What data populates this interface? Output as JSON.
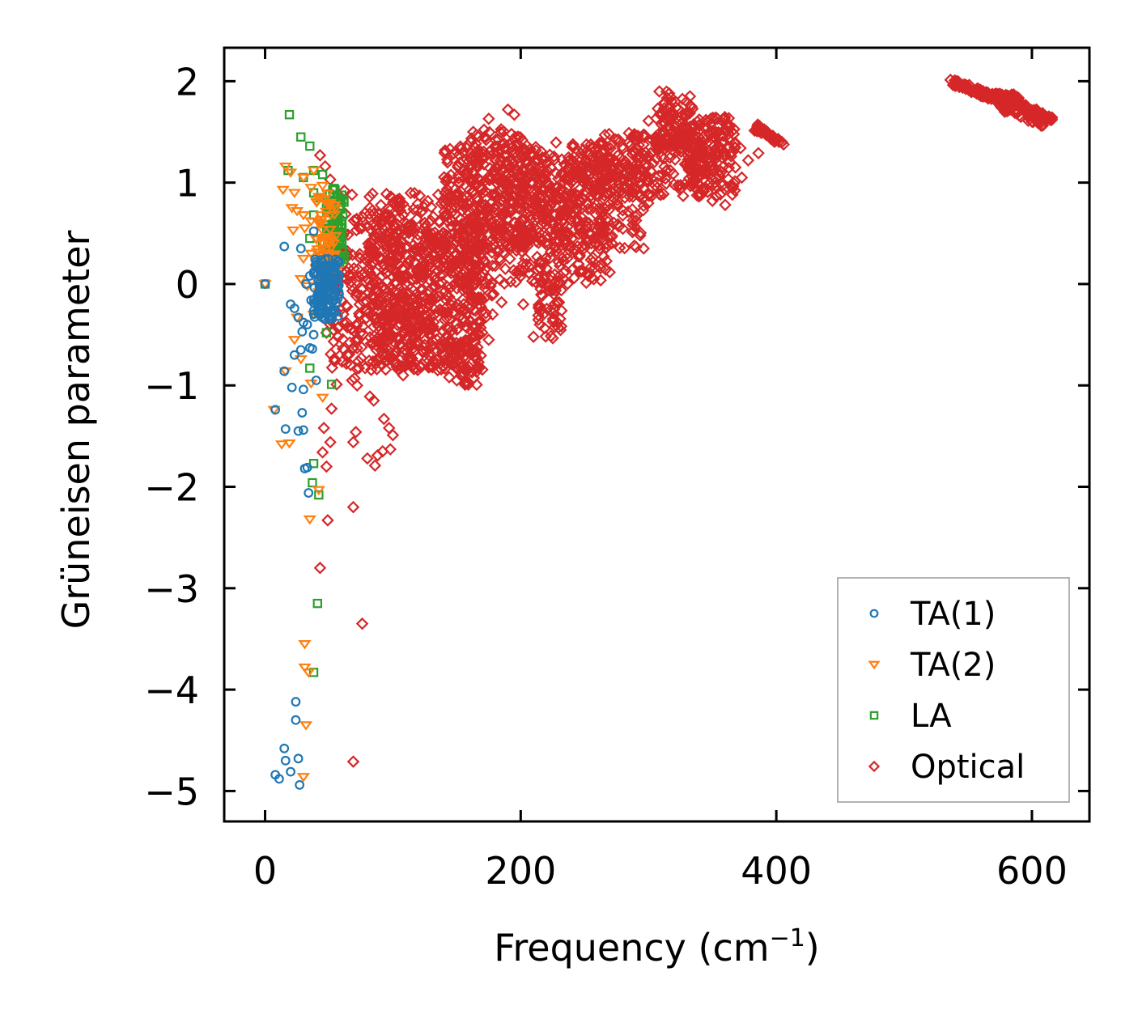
{
  "chart_data": {
    "type": "scatter",
    "title": "",
    "xlabel": "Frequency (cm",
    "xlabel_sup": "−1",
    "xlabel_close": ")",
    "ylabel": "Grüneisen parameter",
    "xlim": [
      -32,
      645
    ],
    "ylim": [
      -5.3,
      2.33
    ],
    "xticks": [
      0,
      200,
      400,
      600
    ],
    "xtick_labels": [
      "0",
      "200",
      "400",
      "600"
    ],
    "yticks": [
      2,
      1,
      0,
      -1,
      -2,
      -3,
      -4,
      -5
    ],
    "ytick_labels": [
      "2",
      "1",
      "0",
      "−1",
      "−2",
      "−3",
      "−4",
      "−5"
    ],
    "grid": false,
    "legend_position": "bottom-right",
    "series": [
      {
        "name": "TA(1)",
        "color": "#1f77b4",
        "marker": "circle",
        "points": [
          [
            0,
            0
          ],
          [
            15,
            0.37
          ],
          [
            28,
            0.35
          ],
          [
            38,
            0.52
          ],
          [
            40,
            0.22
          ],
          [
            35,
            0.08
          ],
          [
            32,
            0.0
          ],
          [
            44,
            -0.03
          ],
          [
            46,
            -0.12
          ],
          [
            20,
            -0.2
          ],
          [
            23,
            -0.24
          ],
          [
            26,
            -0.33
          ],
          [
            30,
            -0.38
          ],
          [
            33,
            -0.4
          ],
          [
            36,
            -0.16
          ],
          [
            38,
            -0.5
          ],
          [
            29,
            -0.47
          ],
          [
            23,
            -0.7
          ],
          [
            28,
            -0.65
          ],
          [
            35,
            -0.63
          ],
          [
            37,
            -0.64
          ],
          [
            15,
            -0.86
          ],
          [
            40,
            -0.95
          ],
          [
            21,
            -1.02
          ],
          [
            30,
            -1.04
          ],
          [
            8,
            -1.24
          ],
          [
            29,
            -1.27
          ],
          [
            16,
            -1.43
          ],
          [
            26,
            -1.45
          ],
          [
            30,
            -1.44
          ],
          [
            31,
            -1.82
          ],
          [
            33,
            -1.81
          ],
          [
            34,
            -2.06
          ],
          [
            24,
            -4.12
          ],
          [
            24,
            -4.3
          ],
          [
            15,
            -4.58
          ],
          [
            26,
            -4.68
          ],
          [
            16,
            -4.7
          ],
          [
            8,
            -4.84
          ],
          [
            11,
            -4.88
          ],
          [
            20,
            -4.81
          ],
          [
            27,
            -4.94
          ]
        ],
        "dense_cluster": {
          "x_range": [
            38,
            58
          ],
          "y_range": [
            -0.35,
            0.25
          ],
          "count": 140
        }
      },
      {
        "name": "TA(2)",
        "color": "#ff7f0e",
        "marker": "triangle-down",
        "points": [
          [
            0,
            0
          ],
          [
            16,
            1.16
          ],
          [
            20,
            1.1
          ],
          [
            30,
            1.05
          ],
          [
            38,
            1.12
          ],
          [
            14,
            0.93
          ],
          [
            23,
            0.9
          ],
          [
            36,
            0.95
          ],
          [
            45,
            0.97
          ],
          [
            21,
            0.75
          ],
          [
            25,
            0.72
          ],
          [
            30,
            0.68
          ],
          [
            36,
            0.62
          ],
          [
            42,
            0.6
          ],
          [
            22,
            0.53
          ],
          [
            31,
            0.55
          ],
          [
            40,
            0.45
          ],
          [
            30,
            0.25
          ],
          [
            36,
            0.3
          ],
          [
            40,
            0.15
          ],
          [
            28,
            0.05
          ],
          [
            33,
            -0.02
          ],
          [
            42,
            -0.08
          ],
          [
            38,
            -0.3
          ],
          [
            25,
            -0.33
          ],
          [
            23,
            -0.55
          ],
          [
            28,
            -0.74
          ],
          [
            16,
            -0.86
          ],
          [
            36,
            -0.98
          ],
          [
            45,
            -1.12
          ],
          [
            7,
            -1.24
          ],
          [
            13,
            -1.58
          ],
          [
            19,
            -1.57
          ],
          [
            42,
            -2.03
          ],
          [
            35,
            -2.32
          ],
          [
            31,
            -3.55
          ],
          [
            31,
            -3.78
          ],
          [
            34,
            -3.83
          ],
          [
            32,
            -4.35
          ],
          [
            30,
            -4.86
          ]
        ],
        "dense_cluster": {
          "x_range": [
            40,
            56
          ],
          "y_range": [
            -0.1,
            0.9
          ],
          "count": 70
        }
      },
      {
        "name": "LA",
        "color": "#2ca02c",
        "marker": "square",
        "points": [
          [
            0,
            0
          ],
          [
            19,
            1.67
          ],
          [
            28,
            1.45
          ],
          [
            35,
            1.36
          ],
          [
            18,
            1.12
          ],
          [
            38,
            1.12
          ],
          [
            45,
            1.08
          ],
          [
            30,
            1.05
          ],
          [
            38,
            0.9
          ],
          [
            43,
            0.85
          ],
          [
            48,
            0.75
          ],
          [
            38,
            0.68
          ],
          [
            35,
            0.45
          ],
          [
            45,
            0.4
          ],
          [
            50,
            0.32
          ],
          [
            43,
            0.15
          ],
          [
            48,
            -0.48
          ],
          [
            35,
            -0.83
          ],
          [
            52,
            -0.99
          ],
          [
            38,
            -1.77
          ],
          [
            37,
            -1.96
          ],
          [
            42,
            -2.08
          ],
          [
            41,
            -3.15
          ],
          [
            38,
            -3.83
          ]
        ],
        "dense_cluster": {
          "x_range": [
            48,
            62
          ],
          "y_range": [
            0.2,
            0.95
          ],
          "count": 90
        }
      },
      {
        "name": "Optical",
        "color": "#d62728",
        "marker": "diamond",
        "points": [
          [
            43,
            1.27
          ],
          [
            47,
            1.16
          ],
          [
            51,
            1.03
          ],
          [
            62,
            0.92
          ],
          [
            68,
            0.88
          ],
          [
            55,
            0.8
          ],
          [
            63,
            0.69
          ],
          [
            48,
            -0.48
          ],
          [
            57,
            -0.52
          ],
          [
            62,
            -0.65
          ],
          [
            67,
            -0.8
          ],
          [
            70,
            -0.93
          ],
          [
            72,
            -1.0
          ],
          [
            68,
            -0.95
          ],
          [
            56,
            -0.99
          ],
          [
            52,
            -1.23
          ],
          [
            46,
            -1.42
          ],
          [
            45,
            -1.66
          ],
          [
            48,
            -1.8
          ],
          [
            51,
            -1.56
          ],
          [
            69,
            -1.56
          ],
          [
            71,
            -1.46
          ],
          [
            82,
            -1.11
          ],
          [
            85,
            -1.15
          ],
          [
            93,
            -1.33
          ],
          [
            97,
            -1.42
          ],
          [
            100,
            -1.49
          ],
          [
            92,
            -1.65
          ],
          [
            88,
            -1.69
          ],
          [
            86,
            -1.79
          ],
          [
            98,
            -1.63
          ],
          [
            80,
            -1.72
          ],
          [
            49,
            -2.33
          ],
          [
            69,
            -2.2
          ],
          [
            43,
            -2.8
          ],
          [
            76,
            -3.35
          ],
          [
            69,
            -4.71
          ],
          [
            175,
            1.63
          ],
          [
            190,
            1.72
          ],
          [
            195,
            1.67
          ],
          [
            212,
            1.15
          ],
          [
            247,
            1.05
          ],
          [
            255,
            0.95
          ],
          [
            268,
            0.65
          ],
          [
            263,
            0.73
          ],
          [
            280,
            0.9
          ],
          [
            290,
            0.95
          ],
          [
            300,
            1.61
          ],
          [
            318,
            1.48
          ],
          [
            345,
            1.22
          ],
          [
            352,
            1.0
          ],
          [
            363,
            1.42
          ],
          [
            372,
            1.34
          ],
          [
            368,
            1.15
          ],
          [
            373,
            1.05
          ],
          [
            378,
            1.22
          ],
          [
            386,
            1.29
          ],
          [
            360,
            0.78
          ],
          [
            350,
            0.82
          ],
          [
            340,
            0.88
          ],
          [
            210,
            -0.52
          ],
          [
            215,
            -0.4
          ],
          [
            226,
            -0.25
          ],
          [
            230,
            -0.18
          ],
          [
            202,
            -0.2
          ],
          [
            198,
            0.1
          ],
          [
            215,
            0.15
          ],
          [
            218,
            0.05
          ],
          [
            225,
            0.6
          ],
          [
            245,
            0.2
          ],
          [
            242,
            0.35
          ],
          [
            150,
            -0.95
          ],
          [
            158,
            -0.98
          ],
          [
            155,
            -0.9
          ],
          [
            165,
            -0.72
          ],
          [
            170,
            -0.48
          ],
          [
            178,
            -0.3
          ],
          [
            185,
            -0.18
          ],
          [
            160,
            -0.24
          ],
          [
            145,
            -0.55
          ],
          [
            140,
            -0.7
          ],
          [
            135,
            -0.85
          ],
          [
            120,
            -0.72
          ],
          [
            118,
            -0.48
          ],
          [
            125,
            -0.38
          ],
          [
            132,
            -0.12
          ],
          [
            112,
            -0.18
          ],
          [
            115,
            -0.5
          ],
          [
            105,
            -0.55
          ],
          [
            103,
            -0.82
          ],
          [
            108,
            -0.9
          ],
          [
            98,
            -0.72
          ],
          [
            100,
            -0.6
          ],
          [
            130,
            -0.62
          ],
          [
            128,
            -0.45
          ],
          [
            150,
            -0.45
          ],
          [
            152,
            -0.25
          ],
          [
            162,
            -0.65
          ],
          [
            175,
            -0.55
          ]
        ],
        "blobs": [
          {
            "x_range": [
              50,
              170
            ],
            "y_range": [
              -0.85,
              0.7
            ],
            "count": 650
          },
          {
            "x_range": [
              80,
              180
            ],
            "y_range": [
              -0.45,
              0.9
            ],
            "count": 260
          },
          {
            "x_range": [
              140,
              270
            ],
            "y_range": [
              0.0,
              1.4
            ],
            "count": 520
          },
          {
            "x_range": [
              160,
              205
            ],
            "y_range": [
              0.3,
              1.55
            ],
            "count": 170
          },
          {
            "x_range": [
              200,
              300
            ],
            "y_range": [
              0.35,
              1.3
            ],
            "count": 280
          },
          {
            "x_range": [
              260,
              345
            ],
            "y_range": [
              0.85,
              1.5
            ],
            "count": 200
          },
          {
            "x_range": [
              305,
              335
            ],
            "y_range": [
              1.3,
              1.9
            ],
            "count": 90
          },
          {
            "x_range": [
              330,
              368
            ],
            "y_range": [
              0.85,
              1.65
            ],
            "count": 150
          },
          {
            "x_range": [
              213,
              232
            ],
            "y_range": [
              -0.55,
              0.05
            ],
            "count": 40
          },
          {
            "x_range": [
              140,
              168
            ],
            "y_range": [
              -1.0,
              -0.55
            ],
            "count": 40
          },
          {
            "x_range": [
              90,
              118
            ],
            "y_range": [
              -0.75,
              -0.2
            ],
            "count": 50
          }
        ],
        "diagonal_bands": [
          {
            "from": [
              538,
              1.99
            ],
            "to": [
              575,
              1.82
            ],
            "count": 90
          },
          {
            "from": [
              560,
              1.86
            ],
            "to": [
              590,
              1.84
            ],
            "count": 40
          },
          {
            "from": [
              580,
              1.84
            ],
            "to": [
              615,
              1.62
            ],
            "count": 90
          },
          {
            "from": [
              575,
              1.75
            ],
            "to": [
              610,
              1.57
            ],
            "count": 40
          },
          {
            "from": [
              383,
              1.55
            ],
            "to": [
              405,
              1.38
            ],
            "count": 40
          }
        ]
      }
    ]
  }
}
